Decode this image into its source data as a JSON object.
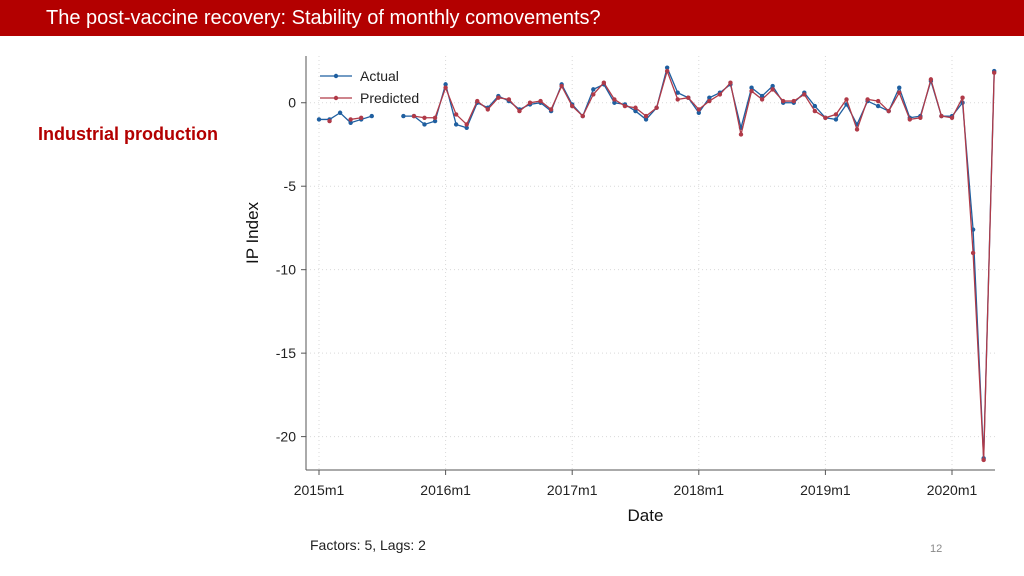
{
  "slide": {
    "title": "The post-vaccine recovery: Stability of monthly comovements?",
    "side_label": "Industrial production",
    "footnote": "Factors: 5, Lags: 2",
    "page_number": "12"
  },
  "colors": {
    "title_bar": "#b30000",
    "side_label": "#b30000",
    "actual": "#1f5fa0",
    "predicted": "#b03a48"
  },
  "chart_data": {
    "type": "line",
    "xlabel": "Date",
    "ylabel": "IP Index",
    "xlim": [
      "2015m1",
      "2020m5"
    ],
    "ylim": [
      -22,
      2.8
    ],
    "x_ticks": [
      "2015m1",
      "2016m1",
      "2017m1",
      "2018m1",
      "2019m1",
      "2020m1"
    ],
    "y_ticks": [
      0,
      -5,
      -10,
      -15,
      -20
    ],
    "grid": true,
    "legend_position": "top-left",
    "x": [
      "2015m1",
      "2015m2",
      "2015m3",
      "2015m4",
      "2015m5",
      "2015m6",
      "2015m7",
      "2015m8",
      "2015m9",
      "2015m10",
      "2015m11",
      "2015m12",
      "2016m1",
      "2016m2",
      "2016m3",
      "2016m4",
      "2016m5",
      "2016m6",
      "2016m7",
      "2016m8",
      "2016m9",
      "2016m10",
      "2016m11",
      "2016m12",
      "2017m1",
      "2017m2",
      "2017m3",
      "2017m4",
      "2017m5",
      "2017m6",
      "2017m7",
      "2017m8",
      "2017m9",
      "2017m10",
      "2017m11",
      "2017m12",
      "2018m1",
      "2018m2",
      "2018m3",
      "2018m4",
      "2018m5",
      "2018m6",
      "2018m7",
      "2018m8",
      "2018m9",
      "2018m10",
      "2018m11",
      "2018m12",
      "2019m1",
      "2019m2",
      "2019m3",
      "2019m4",
      "2019m5",
      "2019m6",
      "2019m7",
      "2019m8",
      "2019m9",
      "2019m10",
      "2019m11",
      "2019m12",
      "2020m1",
      "2020m2",
      "2020m3",
      "2020m4",
      "2020m5"
    ],
    "series": [
      {
        "name": "Actual",
        "color": "#1f5fa0",
        "values": [
          -1.0,
          -1.0,
          -0.6,
          -1.2,
          -1.0,
          -0.8,
          null,
          null,
          -0.8,
          -0.8,
          -1.3,
          -1.1,
          1.1,
          -1.3,
          -1.5,
          0.0,
          -0.3,
          0.4,
          0.1,
          -0.4,
          -0.1,
          0.0,
          -0.5,
          1.1,
          -0.1,
          -0.8,
          0.8,
          1.1,
          0.0,
          -0.1,
          -0.5,
          -1.0,
          -0.3,
          2.1,
          0.6,
          0.3,
          -0.6,
          0.3,
          0.6,
          1.1,
          -1.5,
          0.9,
          0.4,
          1.0,
          0.0,
          0.0,
          0.6,
          -0.2,
          -0.9,
          -1.0,
          -0.1,
          -1.3,
          0.1,
          -0.2,
          -0.5,
          0.9,
          -0.9,
          -0.8,
          1.3,
          -0.8,
          -0.8,
          0.0,
          -7.6,
          -21.3,
          1.9
        ]
      },
      {
        "name": "Predicted",
        "color": "#b03a48",
        "values": [
          null,
          -1.1,
          null,
          -1.0,
          -0.9,
          null,
          null,
          null,
          null,
          -0.8,
          -0.9,
          -0.9,
          0.9,
          -0.7,
          -1.3,
          0.1,
          -0.4,
          0.3,
          0.2,
          -0.5,
          0.0,
          0.1,
          -0.4,
          1.0,
          -0.2,
          -0.8,
          0.5,
          1.2,
          0.2,
          -0.2,
          -0.3,
          -0.8,
          -0.3,
          1.9,
          0.2,
          0.3,
          -0.4,
          0.1,
          0.5,
          1.2,
          -1.9,
          0.7,
          0.2,
          0.8,
          0.1,
          0.1,
          0.5,
          -0.5,
          -0.9,
          -0.7,
          0.2,
          -1.6,
          0.2,
          0.1,
          -0.5,
          0.6,
          -1.0,
          -0.9,
          1.4,
          -0.8,
          -0.9,
          0.3,
          -9.0,
          -21.4,
          1.8
        ]
      }
    ]
  }
}
